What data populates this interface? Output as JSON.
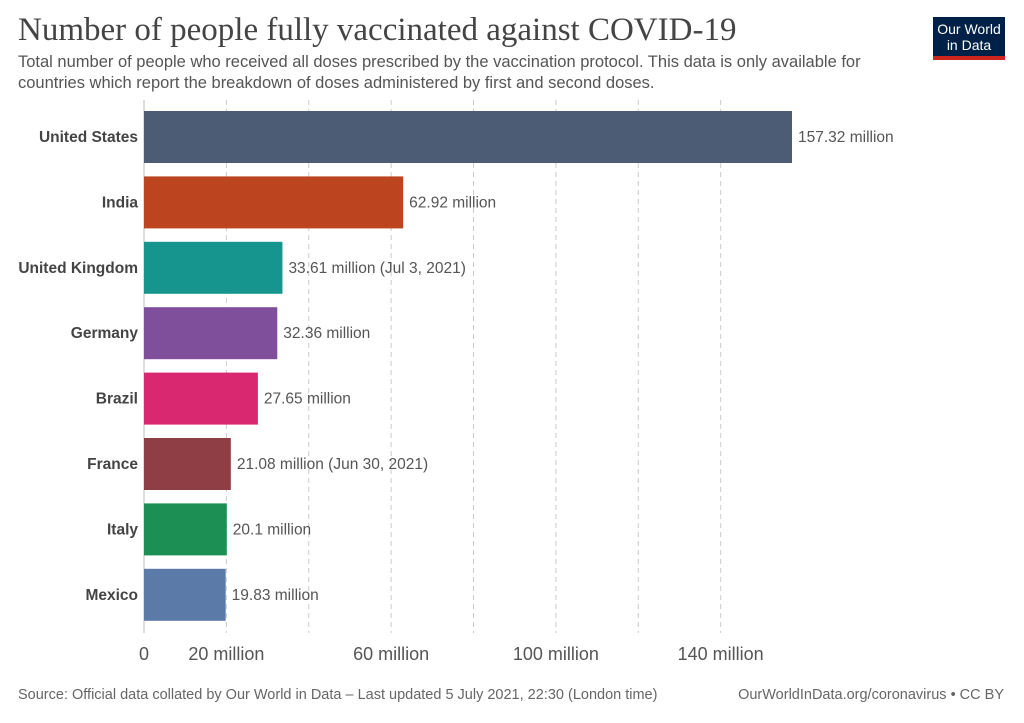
{
  "header": {
    "title": "Number of people fully vaccinated against COVID-19",
    "subtitle": "Total number of people who received all doses prescribed by the vaccination protocol. This data is only available for countries which report the breakdown of doses administered by first and second doses.",
    "logo_line1": "Our World",
    "logo_line2": "in Data",
    "logo_bg": "#002147",
    "logo_accent": "#ce261e"
  },
  "footer": {
    "source": "Source: Official data collated by Our World in Data – Last updated 5 July 2021, 22:30 (London time)",
    "link": "OurWorldInData.org/coronavirus • CC BY"
  },
  "chart_data": {
    "type": "bar",
    "orientation": "horizontal",
    "categories": [
      "United States",
      "India",
      "United Kingdom",
      "Germany",
      "Brazil",
      "France",
      "Italy",
      "Mexico"
    ],
    "values": [
      157.32,
      62.92,
      33.61,
      32.36,
      27.65,
      21.08,
      20.1,
      19.83
    ],
    "value_labels": [
      "157.32 million",
      "62.92 million",
      "33.61 million (Jul 3, 2021)",
      "32.36 million",
      "27.65 million",
      "21.08 million (Jun 30, 2021)",
      "20.1 million",
      "19.83 million"
    ],
    "colors": [
      "#4c5c75",
      "#bc4520",
      "#16958e",
      "#7f4f9c",
      "#d9286f",
      "#8f3e45",
      "#1c9054",
      "#5c7aa8"
    ],
    "x_ticks": [
      0,
      20,
      60,
      100,
      140
    ],
    "x_tick_labels": [
      "0",
      "20 million",
      "60 million",
      "100 million",
      "140 million"
    ],
    "gridlines": [
      20,
      40,
      60,
      80,
      100,
      120,
      140
    ],
    "xlim": [
      0,
      157.32
    ],
    "grid": true
  }
}
